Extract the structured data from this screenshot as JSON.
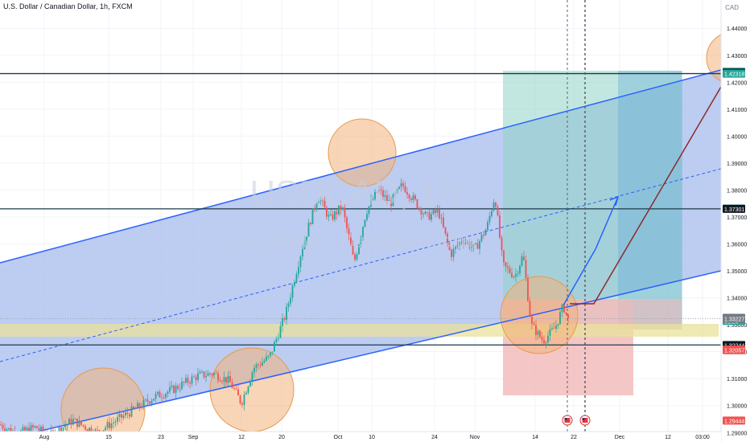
{
  "header": {
    "symbol_title": "U.S. Dollar / Canadian Dollar, 1h, FXCM",
    "currency": "CAD"
  },
  "watermark": {
    "ticker": "USDCAD, 1h",
    "name": "U.S. Dollar / Canadian Dollar"
  },
  "colors": {
    "up": "#26a69a",
    "down": "#ef5350",
    "channel_line": "#2962ff",
    "channel_fill": "#b2c3ef",
    "profit_zone": "#8fd3c6",
    "loss_zone": "#f2b8b8",
    "highlight_circle": "#f2b37a",
    "support_band": "#e9e19a",
    "projection_up": "#2962ff",
    "projection_long": "#8b2b2b"
  },
  "chart_data": {
    "type": "candlestick",
    "symbol": "USDCAD",
    "timeframe": "1h",
    "y_axis": {
      "ylim": [
        1.2865,
        1.4505
      ],
      "ticks": [
        "1.44000",
        "1.43000",
        "1.42000",
        "1.41000",
        "1.40000",
        "1.39000",
        "1.38000",
        "1.37000",
        "1.36000",
        "1.35000",
        "1.34000",
        "1.33000",
        "1.32000",
        "1.31000",
        "1.30000",
        "1.29000"
      ]
    },
    "x_axis": {
      "labels": [
        "Aug",
        "15",
        "23",
        "Sep",
        "12",
        "20",
        "Oct",
        "10",
        "24",
        "Nov",
        "14",
        "22",
        "Dec",
        "12",
        "03:00"
      ]
    },
    "price_labels": [
      {
        "text": "1.42388",
        "color": "#26a69a",
        "value": 1.42388
      },
      {
        "text": "1.42357",
        "color": "#131722",
        "value": 1.42357
      },
      {
        "text": "1.42318",
        "color": "#26a69a",
        "value": 1.42318
      },
      {
        "text": "1.37313",
        "color": "#26a69a",
        "value": 1.37313
      },
      {
        "text": "1.37301",
        "color": "#131722",
        "value": 1.37301
      },
      {
        "text": "1.33258",
        "color": "#787b86",
        "value": 1.33258
      },
      {
        "text": "USDCAD",
        "color": "#131722",
        "value": 1.3323
      },
      {
        "text": "1.33231",
        "color": "#26a69a",
        "value": 1.33231
      },
      {
        "text": "31:23",
        "color": "#26a69a",
        "value": 1.3314
      },
      {
        "text": "1.33227",
        "color": "#787b86",
        "value": 1.33227
      },
      {
        "text": "1.32245",
        "color": "#131722",
        "value": 1.32245
      },
      {
        "text": "1.32244",
        "color": "#131722",
        "value": 1.32244
      },
      {
        "text": "1.32078",
        "color": "#ef5350",
        "value": 1.32078
      },
      {
        "text": "1.32057",
        "color": "#ef5350",
        "value": 1.32057
      },
      {
        "text": "1.29444",
        "color": "#ef5350",
        "value": 1.29444
      }
    ],
    "horizontal_levels": [
      1.4232,
      1.373,
      1.3225
    ],
    "last_price": 1.33231
  },
  "events": {
    "flag_icon": "us-flag-icon"
  }
}
